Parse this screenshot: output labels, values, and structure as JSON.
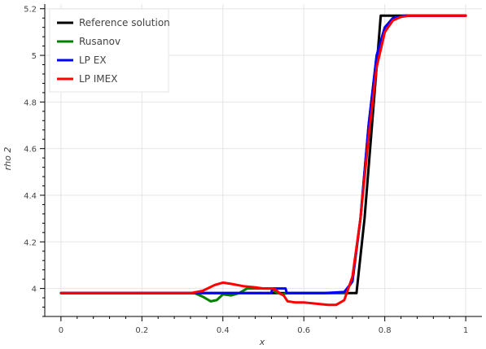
{
  "chart_data": {
    "type": "line",
    "title": "",
    "xlabel": "x",
    "ylabel": "rho 2",
    "xlim": [
      -0.04,
      1.04
    ],
    "ylim": [
      3.88,
      5.22
    ],
    "grid": true,
    "legend_position": "top-left",
    "x_ticks": [
      0,
      0.2,
      0.4,
      0.6,
      0.8,
      1
    ],
    "x_tick_labels": [
      "0",
      "0.2",
      "0.4",
      "0.6",
      "0.8",
      "1"
    ],
    "y_ticks": [
      4,
      4.2,
      4.4,
      4.6,
      4.8,
      5,
      5.2
    ],
    "y_tick_labels": [
      "4",
      "4.2",
      "4.4",
      "4.6",
      "4.8",
      "5",
      "5.2"
    ],
    "series": [
      {
        "name": "Reference solution",
        "color": "#000000",
        "x": [
          0,
          0.33,
          0.5,
          0.52,
          0.73,
          0.75,
          0.79,
          1
        ],
        "y": [
          3.98,
          3.98,
          3.98,
          3.98,
          3.98,
          4.3,
          5.17,
          5.17
        ]
      },
      {
        "name": "Rusanov",
        "color": "#008000",
        "x": [
          0,
          0.33,
          0.35,
          0.37,
          0.385,
          0.4,
          0.42,
          0.44,
          0.46,
          0.48,
          0.5,
          0.52,
          0.53,
          0.545,
          0.56,
          0.58,
          0.6,
          0.65,
          0.7,
          0.72,
          0.74,
          0.76,
          0.78,
          0.8,
          0.82,
          0.85,
          1
        ],
        "y": [
          3.98,
          3.98,
          3.965,
          3.945,
          3.95,
          3.975,
          3.97,
          3.98,
          4.0,
          4.0,
          4.0,
          4.0,
          3.985,
          3.975,
          3.98,
          3.98,
          3.98,
          3.98,
          3.98,
          4.03,
          4.3,
          4.7,
          5.0,
          5.12,
          5.16,
          5.17,
          5.17
        ]
      },
      {
        "name": "LP EX",
        "color": "#0000ff",
        "x": [
          0,
          0.33,
          0.36,
          0.4,
          0.45,
          0.5,
          0.52,
          0.522,
          0.54,
          0.555,
          0.558,
          0.57,
          0.6,
          0.65,
          0.7,
          0.72,
          0.74,
          0.76,
          0.78,
          0.8,
          0.82,
          0.85,
          1
        ],
        "y": [
          3.98,
          3.98,
          3.98,
          3.98,
          3.98,
          3.98,
          3.98,
          4.0,
          4.0,
          4.0,
          3.98,
          3.98,
          3.98,
          3.98,
          3.985,
          4.03,
          4.3,
          4.7,
          5.0,
          5.12,
          5.16,
          5.17,
          5.17
        ]
      },
      {
        "name": "LP IMEX",
        "color": "#ff0000",
        "x": [
          0,
          0.32,
          0.35,
          0.38,
          0.4,
          0.42,
          0.45,
          0.48,
          0.5,
          0.52,
          0.53,
          0.54,
          0.55,
          0.56,
          0.58,
          0.6,
          0.63,
          0.66,
          0.68,
          0.7,
          0.72,
          0.74,
          0.76,
          0.78,
          0.8,
          0.82,
          0.84,
          0.86,
          1
        ],
        "y": [
          3.98,
          3.98,
          3.99,
          4.015,
          4.025,
          4.02,
          4.01,
          4.005,
          4.0,
          4.0,
          3.995,
          3.98,
          3.97,
          3.945,
          3.94,
          3.94,
          3.935,
          3.93,
          3.93,
          3.95,
          4.05,
          4.3,
          4.65,
          4.95,
          5.1,
          5.15,
          5.165,
          5.17,
          5.17
        ]
      }
    ]
  }
}
